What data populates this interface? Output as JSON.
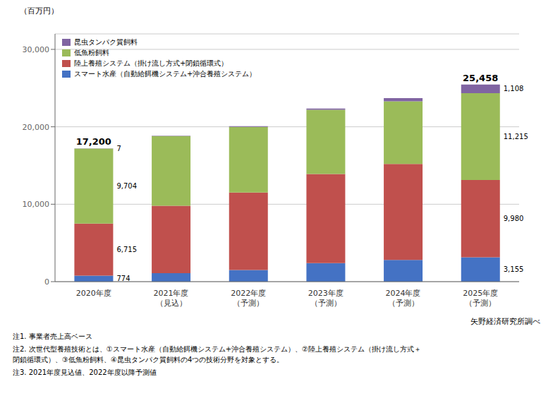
{
  "chart_data": {
    "type": "bar",
    "stacked": true,
    "grid": true,
    "legend": "upper left",
    "data_labels": true,
    "ylabel": "（百万円）",
    "source": "矢野経済研究所調べ",
    "notes": [
      "注1. 事業者売上高ベース",
      "注2. 次世代型養殖技術とは、①スマート水産（自動給餌機システム+沖合養殖システム）、②陸上養殖システム（掛け流し方式＋\n閉鎖循環式）、③低魚粉飼料、④昆虫タンパク質飼料の4つの技術分野を対象とする。",
      "注3. 2021年度見込値、2022年度以降予測値"
    ],
    "categories": [
      "2020年度",
      "2021年度\n（見込）",
      "2022年度\n（予測）",
      "2023年度\n（予測）",
      "2024年度\n（予測）",
      "2025年度\n（予測）"
    ],
    "series": [
      {
        "name": "スマート水産（自動給餌機システム+沖合養殖システム）",
        "color": "#4472C4",
        "values": [
          774,
          1100,
          1500,
          2400,
          2800,
          3155
        ],
        "value_labels": [
          "774",
          null,
          null,
          null,
          null,
          "3,155"
        ]
      },
      {
        "name": "陸上養殖システム（掛け流し方式+閉鎖循環式）",
        "color": "#C0504D",
        "values": [
          6715,
          8700,
          10000,
          11500,
          12400,
          9980
        ],
        "value_labels": [
          "6,715",
          null,
          null,
          null,
          null,
          "9,980"
        ]
      },
      {
        "name": "低魚粉飼料",
        "color": "#9BBB59",
        "values": [
          9704,
          9000,
          8500,
          8300,
          8100,
          11215
        ],
        "value_labels": [
          "9,704",
          null,
          null,
          null,
          null,
          "11,215"
        ]
      },
      {
        "name": "昆虫タンパク質飼料",
        "color": "#8064A2",
        "values": [
          7,
          50,
          80,
          150,
          400,
          1108
        ],
        "value_labels": [
          "7",
          null,
          null,
          null,
          null,
          "1,108"
        ]
      }
    ],
    "totals": [
      17200,
      null,
      null,
      null,
      null,
      25458
    ],
    "total_labels": [
      "17,200",
      null,
      null,
      null,
      null,
      "25,458"
    ],
    "ylim": [
      0,
      32000
    ],
    "yticks": [
      0,
      {
        "value": 10000,
        "label": "10,000"
      },
      {
        "value": 20000,
        "label": "20,000"
      },
      {
        "value": 30000,
        "label": "30,000"
      }
    ]
  }
}
